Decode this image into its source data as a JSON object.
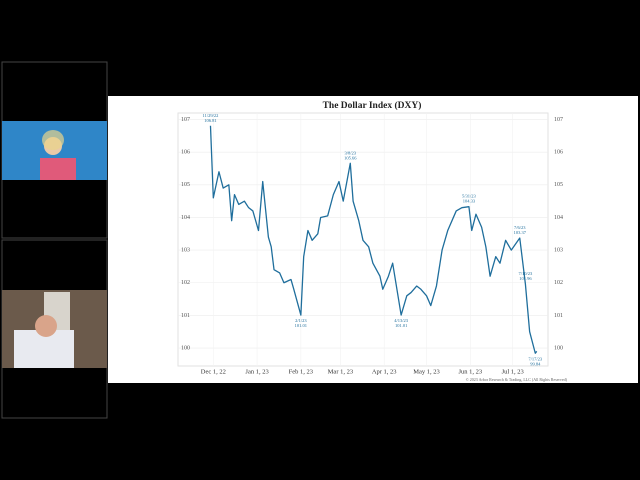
{
  "chart_data": {
    "type": "line",
    "title": "The Dollar Index (DXY)",
    "footer": "© 2023 Arbor Research & Trading, LLC (All Rights Reserved)",
    "series": [
      {
        "color": "#1f6e9c",
        "x": [
          "2022-11-29",
          "2022-12-01",
          "2022-12-05",
          "2022-12-08",
          "2022-12-12",
          "2022-12-14",
          "2022-12-16",
          "2022-12-19",
          "2022-12-23",
          "2022-12-26",
          "2022-12-29",
          "2023-01-02",
          "2023-01-05",
          "2023-01-09",
          "2023-01-11",
          "2023-01-13",
          "2023-01-17",
          "2023-01-20",
          "2023-01-25",
          "2023-01-27",
          "2023-02-01",
          "2023-02-03",
          "2023-02-06",
          "2023-02-09",
          "2023-02-13",
          "2023-02-15",
          "2023-02-20",
          "2023-02-24",
          "2023-02-28",
          "2023-03-03",
          "2023-03-08",
          "2023-03-10",
          "2023-03-14",
          "2023-03-17",
          "2023-03-21",
          "2023-03-24",
          "2023-03-29",
          "2023-03-31",
          "2023-04-04",
          "2023-04-07",
          "2023-04-13",
          "2023-04-17",
          "2023-04-20",
          "2023-04-24",
          "2023-04-27",
          "2023-05-01",
          "2023-05-04",
          "2023-05-08",
          "2023-05-12",
          "2023-05-16",
          "2023-05-22",
          "2023-05-26",
          "2023-05-31",
          "2023-06-02",
          "2023-06-05",
          "2023-06-09",
          "2023-06-12",
          "2023-06-15",
          "2023-06-19",
          "2023-06-22",
          "2023-06-26",
          "2023-06-30",
          "2023-07-06",
          "2023-07-10",
          "2023-07-13",
          "2023-07-17",
          "2023-07-18"
        ],
        "values": [
          106.81,
          104.6,
          105.4,
          104.9,
          105.0,
          103.9,
          104.7,
          104.4,
          104.5,
          104.3,
          104.2,
          103.6,
          105.1,
          103.4,
          103.1,
          102.4,
          102.3,
          102.0,
          102.1,
          101.8,
          101.01,
          102.8,
          103.6,
          103.3,
          103.5,
          104.0,
          104.05,
          104.7,
          105.1,
          104.5,
          105.66,
          104.5,
          103.9,
          103.3,
          103.1,
          102.6,
          102.2,
          101.8,
          102.2,
          102.6,
          101.01,
          101.6,
          101.7,
          101.9,
          101.8,
          101.6,
          101.3,
          101.9,
          103.0,
          103.6,
          104.2,
          104.3,
          104.33,
          103.6,
          104.1,
          103.7,
          103.1,
          102.2,
          102.8,
          102.6,
          103.3,
          103.0,
          103.37,
          101.96,
          100.5,
          99.84,
          99.9
        ]
      }
    ],
    "annotations": [
      {
        "x": "2022-11-29",
        "date": "11/29/22",
        "value": 106.81
      },
      {
        "x": "2023-02-01",
        "date": "2/1/23",
        "value": 101.01
      },
      {
        "x": "2023-03-08",
        "date": "3/8/23",
        "value": 105.66
      },
      {
        "x": "2023-04-13",
        "date": "4/13/23",
        "value": 101.01
      },
      {
        "x": "2023-05-31",
        "date": "5/31/23",
        "value": 104.33
      },
      {
        "x": "2023-07-06",
        "date": "7/6/23",
        "value": 103.37
      },
      {
        "x": "2023-07-10",
        "date": "7/10/23",
        "value": 101.96
      },
      {
        "x": "2023-07-17",
        "date": "7/17/23",
        "value": 99.84
      }
    ],
    "xlim": [
      "2022-11-06",
      "2023-07-26"
    ],
    "xticks": [
      {
        "value": "2022-12-01",
        "label": "Dec 1, 22"
      },
      {
        "value": "2023-01-01",
        "label": "Jan 1, 23"
      },
      {
        "value": "2023-02-01",
        "label": "Feb 1, 23"
      },
      {
        "value": "2023-03-01",
        "label": "Mar 1, 23"
      },
      {
        "value": "2023-04-01",
        "label": "Apr 1, 23"
      },
      {
        "value": "2023-05-01",
        "label": "May 1, 23"
      },
      {
        "value": "2023-06-01",
        "label": "Jun 1, 23"
      },
      {
        "value": "2023-07-01",
        "label": "Jul 1, 23"
      }
    ],
    "ylim": [
      99.45,
      107.2
    ],
    "yticks": [
      100,
      101,
      102,
      103,
      104,
      105,
      106,
      107
    ],
    "grid": true
  }
}
